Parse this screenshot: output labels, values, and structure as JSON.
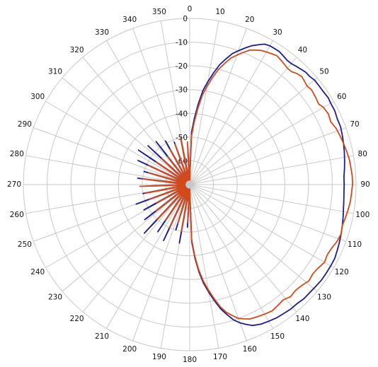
{
  "chart_data": {
    "type": "polar-line",
    "title": "",
    "angle_direction": "clockwise",
    "angle_zero": "top",
    "angle_ticks": [
      0,
      10,
      20,
      30,
      40,
      50,
      60,
      70,
      80,
      90,
      100,
      110,
      120,
      130,
      140,
      150,
      160,
      170,
      180,
      190,
      200,
      210,
      220,
      230,
      240,
      250,
      260,
      270,
      280,
      290,
      300,
      310,
      320,
      330,
      340,
      350
    ],
    "angle_tick_labels": [
      "0",
      "10",
      "20",
      "30",
      "40",
      "50",
      "60",
      "70",
      "80",
      "90",
      "100",
      "110",
      "120",
      "130",
      "140",
      "150",
      "160",
      "170",
      "180",
      "190",
      "200",
      "210",
      "220",
      "230",
      "240",
      "250",
      "260",
      "270",
      "280",
      "290",
      "300",
      "310",
      "320",
      "330",
      "340",
      "350"
    ],
    "radial_ticks": [
      0,
      -10,
      -20,
      -30,
      -40,
      -50,
      -60
    ],
    "radial_tick_labels": [
      "0",
      "-10",
      "-20",
      "-30",
      "-40",
      "-50",
      "-60"
    ],
    "radial_range": [
      -70,
      0
    ],
    "grid": true,
    "colors": {
      "grid": "#c8c8c8",
      "text": "#111111",
      "series_blue": "#1c1c8c",
      "series_red": "#d24a1c"
    },
    "series": [
      {
        "color": "#1c1c8c",
        "points": [
          [
            0,
            -68
          ],
          [
            2,
            -48
          ],
          [
            4,
            -42
          ],
          [
            6,
            -36
          ],
          [
            8,
            -30
          ],
          [
            10,
            -26
          ],
          [
            12,
            -22
          ],
          [
            14,
            -18
          ],
          [
            16,
            -15
          ],
          [
            18,
            -12
          ],
          [
            20,
            -10
          ],
          [
            22,
            -8
          ],
          [
            24,
            -6
          ],
          [
            26,
            -4.5
          ],
          [
            28,
            -3
          ],
          [
            30,
            -2.5
          ],
          [
            32,
            -2.5
          ],
          [
            34,
            -2.5
          ],
          [
            36,
            -3
          ],
          [
            38,
            -3.5
          ],
          [
            40,
            -3.5
          ],
          [
            42,
            -3
          ],
          [
            44,
            -2.5
          ],
          [
            46,
            -2
          ],
          [
            48,
            -2
          ],
          [
            50,
            -1.5
          ],
          [
            52,
            -1.5
          ],
          [
            55,
            -1.5
          ],
          [
            58,
            -1.2
          ],
          [
            60,
            -1.5
          ],
          [
            63,
            -1.5
          ],
          [
            66,
            -2
          ],
          [
            69,
            -2
          ],
          [
            72,
            -2.5
          ],
          [
            75,
            -3
          ],
          [
            78,
            -3.5
          ],
          [
            81,
            -4
          ],
          [
            84,
            -4.5
          ],
          [
            87,
            -5
          ],
          [
            90,
            -5
          ],
          [
            93,
            -5
          ],
          [
            96,
            -4.8
          ],
          [
            99,
            -4.5
          ],
          [
            102,
            -4
          ],
          [
            105,
            -3.5
          ],
          [
            108,
            -3
          ],
          [
            111,
            -2.5
          ],
          [
            114,
            -2
          ],
          [
            117,
            -1.5
          ],
          [
            120,
            -1.5
          ],
          [
            123,
            -1.5
          ],
          [
            126,
            -1.5
          ],
          [
            129,
            -1.8
          ],
          [
            132,
            -2
          ],
          [
            135,
            -2
          ],
          [
            138,
            -2.5
          ],
          [
            141,
            -2.5
          ],
          [
            144,
            -2.8
          ],
          [
            147,
            -3
          ],
          [
            150,
            -3.5
          ],
          [
            153,
            -4
          ],
          [
            156,
            -5
          ],
          [
            158,
            -6.5
          ],
          [
            160,
            -8
          ],
          [
            162,
            -10
          ],
          [
            164,
            -13
          ],
          [
            166,
            -16
          ],
          [
            168,
            -20
          ],
          [
            170,
            -24
          ],
          [
            172,
            -28
          ],
          [
            174,
            -33
          ],
          [
            176,
            -39
          ],
          [
            178,
            -46
          ],
          [
            180,
            -68
          ],
          [
            183,
            -52
          ],
          [
            186,
            -68
          ],
          [
            190,
            -45
          ],
          [
            193,
            -68
          ],
          [
            197,
            -50
          ],
          [
            200,
            -68
          ],
          [
            205,
            -44
          ],
          [
            209,
            -68
          ],
          [
            214,
            -46
          ],
          [
            218,
            -68
          ],
          [
            223,
            -42
          ],
          [
            227,
            -68
          ],
          [
            232,
            -46
          ],
          [
            236,
            -68
          ],
          [
            241,
            -48
          ],
          [
            245,
            -68
          ],
          [
            250,
            -46
          ],
          [
            254,
            -68
          ],
          [
            259,
            -50
          ],
          [
            263,
            -68
          ],
          [
            268,
            -52
          ],
          [
            272,
            -68
          ],
          [
            277,
            -48
          ],
          [
            281,
            -68
          ],
          [
            286,
            -50
          ],
          [
            290,
            -68
          ],
          [
            295,
            -46
          ],
          [
            299,
            -68
          ],
          [
            304,
            -44
          ],
          [
            308,
            -68
          ],
          [
            313,
            -46
          ],
          [
            317,
            -68
          ],
          [
            322,
            -47
          ],
          [
            326,
            -68
          ],
          [
            331,
            -49
          ],
          [
            335,
            -68
          ],
          [
            340,
            -51
          ],
          [
            344,
            -68
          ],
          [
            349,
            -50
          ],
          [
            353,
            -68
          ],
          [
            357,
            -55
          ],
          [
            360,
            -68
          ]
        ]
      },
      {
        "color": "#d24a1c",
        "points": [
          [
            0,
            -68
          ],
          [
            2,
            -50
          ],
          [
            4,
            -44
          ],
          [
            6,
            -38
          ],
          [
            8,
            -32
          ],
          [
            10,
            -28
          ],
          [
            12,
            -24
          ],
          [
            14,
            -20
          ],
          [
            16,
            -17
          ],
          [
            18,
            -14
          ],
          [
            20,
            -12
          ],
          [
            22,
            -10
          ],
          [
            24,
            -8
          ],
          [
            26,
            -7
          ],
          [
            28,
            -6
          ],
          [
            30,
            -5.5
          ],
          [
            32,
            -5
          ],
          [
            34,
            -4.5
          ],
          [
            36,
            -5
          ],
          [
            38,
            -5.5
          ],
          [
            40,
            -6
          ],
          [
            42,
            -6
          ],
          [
            44,
            -5
          ],
          [
            46,
            -4.5
          ],
          [
            48,
            -5
          ],
          [
            50,
            -5.5
          ],
          [
            52,
            -5
          ],
          [
            55,
            -5.5
          ],
          [
            58,
            -6
          ],
          [
            60,
            -5
          ],
          [
            63,
            -4.5
          ],
          [
            66,
            -5
          ],
          [
            69,
            -4
          ],
          [
            72,
            -3.5
          ],
          [
            75,
            -3
          ],
          [
            78,
            -2.5
          ],
          [
            81,
            -2
          ],
          [
            84,
            -1.8
          ],
          [
            87,
            -1.5
          ],
          [
            90,
            -1.5
          ],
          [
            93,
            -1.8
          ],
          [
            96,
            -2
          ],
          [
            99,
            -2.5
          ],
          [
            102,
            -3
          ],
          [
            105,
            -3.5
          ],
          [
            108,
            -3
          ],
          [
            111,
            -3.5
          ],
          [
            114,
            -4.5
          ],
          [
            117,
            -5
          ],
          [
            120,
            -4.5
          ],
          [
            123,
            -5.5
          ],
          [
            126,
            -6
          ],
          [
            129,
            -5.5
          ],
          [
            132,
            -6.5
          ],
          [
            135,
            -7
          ],
          [
            138,
            -6.5
          ],
          [
            141,
            -7.5
          ],
          [
            144,
            -7
          ],
          [
            147,
            -6.5
          ],
          [
            150,
            -7
          ],
          [
            153,
            -7.5
          ],
          [
            156,
            -8
          ],
          [
            158,
            -9
          ],
          [
            160,
            -10
          ],
          [
            162,
            -12
          ],
          [
            164,
            -14
          ],
          [
            166,
            -17
          ],
          [
            168,
            -21
          ],
          [
            170,
            -25
          ],
          [
            172,
            -29
          ],
          [
            174,
            -34
          ],
          [
            176,
            -40
          ],
          [
            178,
            -47
          ],
          [
            180,
            -68
          ],
          [
            183,
            -54
          ],
          [
            186,
            -68
          ],
          [
            190,
            -50
          ],
          [
            193,
            -68
          ],
          [
            197,
            -53
          ],
          [
            200,
            -68
          ],
          [
            205,
            -50
          ],
          [
            209,
            -68
          ],
          [
            214,
            -52
          ],
          [
            218,
            -68
          ],
          [
            223,
            -50
          ],
          [
            227,
            -68
          ],
          [
            232,
            -52
          ],
          [
            236,
            -68
          ],
          [
            241,
            -54
          ],
          [
            245,
            -68
          ],
          [
            250,
            -52
          ],
          [
            254,
            -68
          ],
          [
            259,
            -51
          ],
          [
            263,
            -68
          ],
          [
            268,
            -49
          ],
          [
            272,
            -68
          ],
          [
            277,
            -50
          ],
          [
            281,
            -68
          ],
          [
            286,
            -52
          ],
          [
            290,
            -68
          ],
          [
            295,
            -51
          ],
          [
            299,
            -68
          ],
          [
            304,
            -53
          ],
          [
            308,
            -68
          ],
          [
            313,
            -54
          ],
          [
            317,
            -68
          ],
          [
            322,
            -55
          ],
          [
            326,
            -68
          ],
          [
            331,
            -53
          ],
          [
            335,
            -68
          ],
          [
            340,
            -52
          ],
          [
            344,
            -68
          ],
          [
            349,
            -50
          ],
          [
            353,
            -68
          ],
          [
            357,
            -52
          ],
          [
            360,
            -68
          ]
        ]
      }
    ]
  }
}
